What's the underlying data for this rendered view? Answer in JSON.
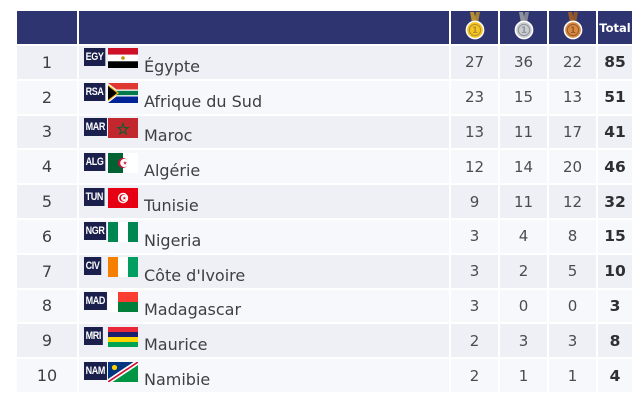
{
  "table": {
    "headers": {
      "total": "Total"
    },
    "medal_icons": [
      {
        "name": "gold-medal-icon",
        "color": "#f3c623",
        "ribbon": "#b98f2d"
      },
      {
        "name": "silver-medal-icon",
        "color": "#c9ccd1",
        "ribbon": "#8f939a"
      },
      {
        "name": "bronze-medal-icon",
        "color": "#d78a43",
        "ribbon": "#9a5a26"
      }
    ],
    "rows": [
      {
        "rank": "1",
        "code": "EGY",
        "flag": "egypt-flag-icon",
        "country": "Égypte",
        "gold": "27",
        "silver": "36",
        "bronze": "22",
        "total": "85"
      },
      {
        "rank": "2",
        "code": "RSA",
        "flag": "south-africa-flag-icon",
        "country": "Afrique du Sud",
        "gold": "23",
        "silver": "15",
        "bronze": "13",
        "total": "51"
      },
      {
        "rank": "3",
        "code": "MAR",
        "flag": "morocco-flag-icon",
        "country": "Maroc",
        "gold": "13",
        "silver": "11",
        "bronze": "17",
        "total": "41"
      },
      {
        "rank": "4",
        "code": "ALG",
        "flag": "algeria-flag-icon",
        "country": "Algérie",
        "gold": "12",
        "silver": "14",
        "bronze": "20",
        "total": "46"
      },
      {
        "rank": "5",
        "code": "TUN",
        "flag": "tunisia-flag-icon",
        "country": "Tunisie",
        "gold": "9",
        "silver": "11",
        "bronze": "12",
        "total": "32"
      },
      {
        "rank": "6",
        "code": "NGR",
        "flag": "nigeria-flag-icon",
        "country": "Nigeria",
        "gold": "3",
        "silver": "4",
        "bronze": "8",
        "total": "15"
      },
      {
        "rank": "7",
        "code": "CIV",
        "flag": "ivory-coast-flag-icon",
        "country": "Côte d'Ivoire",
        "gold": "3",
        "silver": "2",
        "bronze": "5",
        "total": "10"
      },
      {
        "rank": "8",
        "code": "MAD",
        "flag": "madagascar-flag-icon",
        "country": "Madagascar",
        "gold": "3",
        "silver": "0",
        "bronze": "0",
        "total": "3"
      },
      {
        "rank": "9",
        "code": "MRI",
        "flag": "mauritius-flag-icon",
        "country": "Maurice",
        "gold": "2",
        "silver": "3",
        "bronze": "3",
        "total": "8"
      },
      {
        "rank": "10",
        "code": "NAM",
        "flag": "namibia-flag-icon",
        "country": "Namibie",
        "gold": "2",
        "silver": "1",
        "bronze": "1",
        "total": "4"
      }
    ]
  },
  "colors": {
    "header_bg": "#2e3470",
    "row_odd": "#eef0f5",
    "row_even": "#f7f8fb",
    "code_bg": "#1a1f4c"
  }
}
